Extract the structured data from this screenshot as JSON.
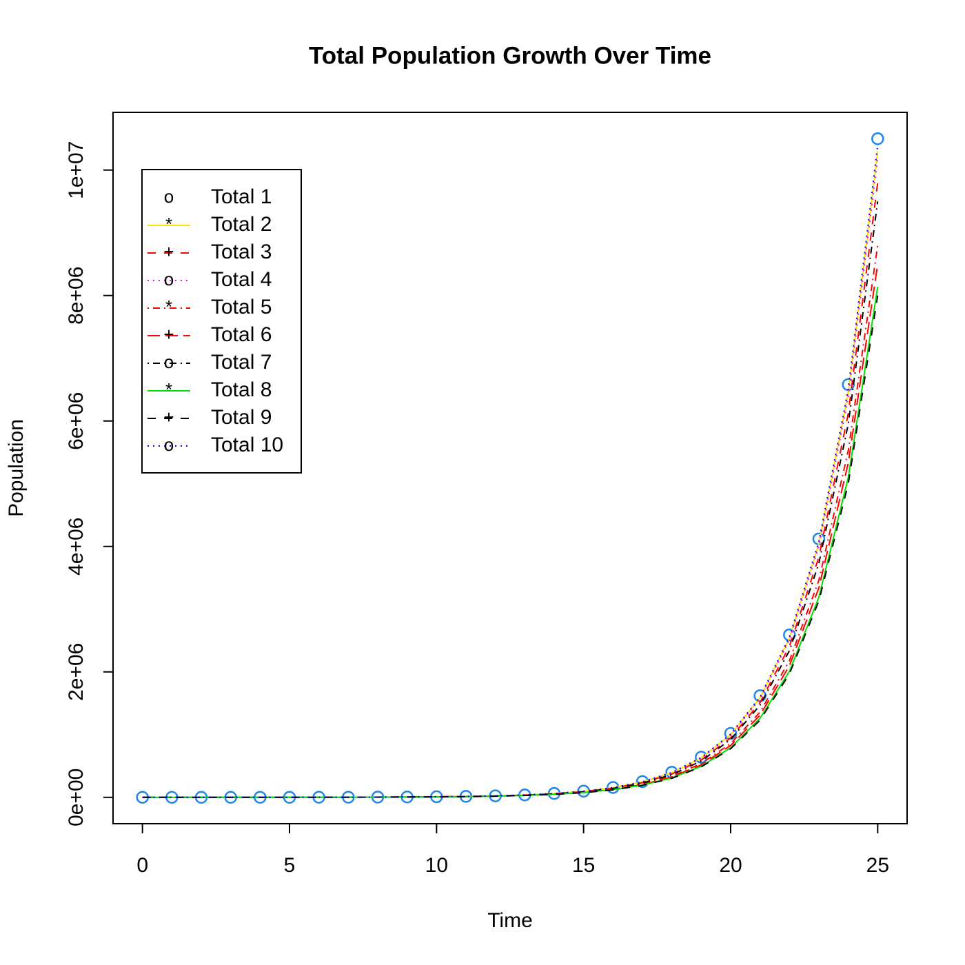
{
  "chart_data": {
    "type": "line",
    "title": "Total Population Growth Over Time",
    "xlabel": "Time",
    "ylabel": "Population",
    "x": [
      0,
      1,
      2,
      3,
      4,
      5,
      6,
      7,
      8,
      9,
      10,
      11,
      12,
      13,
      14,
      15,
      16,
      17,
      18,
      19,
      20,
      21,
      22,
      23,
      24,
      25
    ],
    "xlim": [
      -1,
      26
    ],
    "xticks": [
      0,
      5,
      10,
      15,
      20,
      25
    ],
    "ylim": [
      -420000,
      10920000
    ],
    "yticks": [
      {
        "value": 0,
        "label": "0e+00"
      },
      {
        "value": 2000000,
        "label": "2e+06"
      },
      {
        "value": 4000000,
        "label": "4e+06"
      },
      {
        "value": 6000000,
        "label": "6e+06"
      },
      {
        "value": 8000000,
        "label": "8e+06"
      },
      {
        "value": 10000000,
        "label": "1e+07"
      }
    ],
    "legend": "top-left",
    "series": [
      {
        "name": "Total 1",
        "color": "#1C86EE",
        "line": null,
        "marker": "o",
        "values": [
          90,
          143,
          228,
          364,
          580,
          925,
          1480,
          2360,
          3760,
          5990,
          9560,
          15200,
          24300,
          38800,
          61900,
          98700,
          157000,
          251000,
          400000,
          640000,
          1020000,
          1620000,
          2590000,
          4120000,
          6580000,
          10500000
        ]
      },
      {
        "name": "Total 2",
        "color": "#FFE000",
        "line": "solid",
        "marker": "*",
        "values": [
          88,
          140,
          223,
          357,
          568,
          907,
          1450,
          2310,
          3680,
          5870,
          9370,
          14900,
          23800,
          38000,
          60700,
          96700,
          154000,
          246000,
          392000,
          627000,
          1000000,
          1590000,
          2540000,
          4040000,
          6450000,
          10300000
        ]
      },
      {
        "name": "Total 3",
        "color": "#FF0000",
        "line": "dashed",
        "marker": "+",
        "values": [
          84,
          133,
          212,
          339,
          539,
          860,
          1380,
          2190,
          3500,
          5570,
          8890,
          14100,
          22600,
          36100,
          57600,
          91800,
          146000,
          233000,
          372000,
          595000,
          949000,
          1510000,
          2410000,
          3830000,
          6120000,
          9800000
        ]
      },
      {
        "name": "Total 4",
        "color": "#FF00FF",
        "line": "dotted",
        "marker": "o",
        "values": [
          87,
          139,
          221,
          353,
          563,
          897,
          1440,
          2290,
          3650,
          5810,
          9270,
          14700,
          23600,
          37600,
          60000,
          95700,
          152000,
          243000,
          388000,
          621000,
          989000,
          1570000,
          2510000,
          4000000,
          6380000,
          10200000
        ]
      },
      {
        "name": "Total 5",
        "color": "#FF0000",
        "line": "dotdash",
        "marker": "*",
        "values": [
          76,
          120,
          192,
          306,
          487,
          777,
          1240,
          1980,
          3160,
          5030,
          8030,
          12800,
          20400,
          32600,
          52000,
          82900,
          132000,
          211000,
          336000,
          538000,
          857000,
          1360000,
          2180000,
          3460000,
          5530000,
          8800000
        ]
      },
      {
        "name": "Total 6",
        "color": "#FF0000",
        "line": "longdash",
        "marker": "+",
        "values": [
          73,
          116,
          185,
          295,
          470,
          749,
          1200,
          1910,
          3050,
          4850,
          7740,
          12300,
          19700,
          31400,
          50100,
          79900,
          127000,
          203000,
          324000,
          518000,
          826000,
          1310000,
          2100000,
          3340000,
          5330000,
          8500000
        ]
      },
      {
        "name": "Total 7",
        "color": "#000000",
        "line": "dotdash",
        "marker": "o",
        "values": [
          81,
          129,
          206,
          329,
          525,
          837,
          1340,
          2140,
          3400,
          5420,
          8650,
          13800,
          22000,
          35100,
          56000,
          89300,
          142000,
          227000,
          362000,
          579000,
          923000,
          1470000,
          2340000,
          3730000,
          5950000,
          9500000
        ]
      },
      {
        "name": "Total 8",
        "color": "#00E000",
        "line": "solid",
        "marker": "*",
        "values": [
          70,
          111,
          177,
          282,
          450,
          717,
          1150,
          1830,
          2910,
          4640,
          7410,
          11800,
          18800,
          30100,
          48000,
          76500,
          122000,
          195000,
          310000,
          496000,
          791000,
          1260000,
          2010000,
          3190000,
          5100000,
          8140000
        ]
      },
      {
        "name": "Total 9",
        "color": "#000000",
        "line": "dashed",
        "marker": "+",
        "values": [
          68,
          109,
          173,
          277,
          441,
          703,
          1120,
          1790,
          2860,
          4550,
          7270,
          11600,
          18500,
          29500,
          47000,
          75000,
          119000,
          191000,
          304000,
          486000,
          775000,
          1230000,
          1970000,
          3130000,
          5000000,
          8000000
        ]
      },
      {
        "name": "Total 10",
        "color": "#0000FF",
        "line": "dotted",
        "marker": "o",
        "values": [
          89,
          142,
          226,
          360,
          574,
          916,
          1470,
          2340,
          3720,
          5930,
          9460,
          15000,
          24100,
          38400,
          61300,
          97700,
          155000,
          248000,
          396000,
          634000,
          1010000,
          1600000,
          2560000,
          4080000,
          6510000,
          10400000
        ]
      }
    ]
  }
}
